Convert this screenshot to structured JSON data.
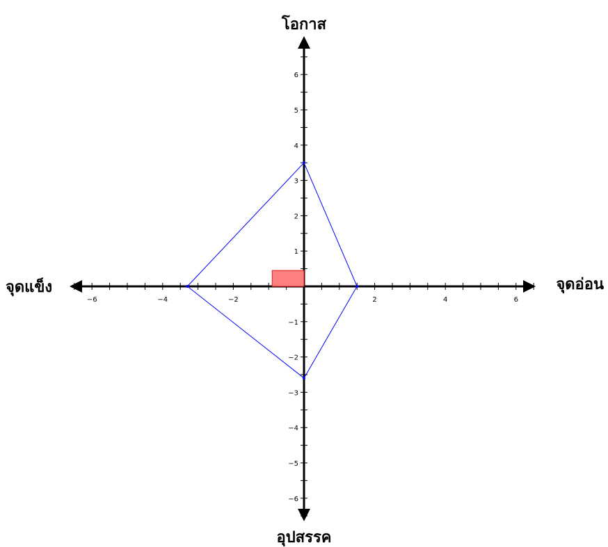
{
  "chart_data": {
    "type": "scatter",
    "axis_labels": {
      "top": "โอกาส",
      "bottom": "อุปสรรค",
      "left": "จุดแข็ง",
      "right": "จุดอ่อน"
    },
    "xlim": [
      -6.6,
      6.6
    ],
    "ylim": [
      -6.6,
      6.6
    ],
    "x_ticks": [
      -6,
      -4,
      -2,
      2,
      4,
      6
    ],
    "y_ticks": [
      -6,
      -5,
      -4,
      -3,
      -2,
      -1,
      1,
      2,
      3,
      4,
      5,
      6
    ],
    "grid": false,
    "polygon": {
      "points": [
        {
          "x": 0,
          "y": 3.5
        },
        {
          "x": 1.5,
          "y": 0
        },
        {
          "x": 0,
          "y": -2.6
        },
        {
          "x": -3.3,
          "y": 0
        }
      ],
      "color": "#0000ff"
    },
    "highlight_rect": {
      "x0": -0.9,
      "x1": 0,
      "y0": 0,
      "y1": 0.45,
      "fill": "#ff7f7f",
      "stroke": "#e31a1c"
    },
    "axis_color": "#000000"
  }
}
